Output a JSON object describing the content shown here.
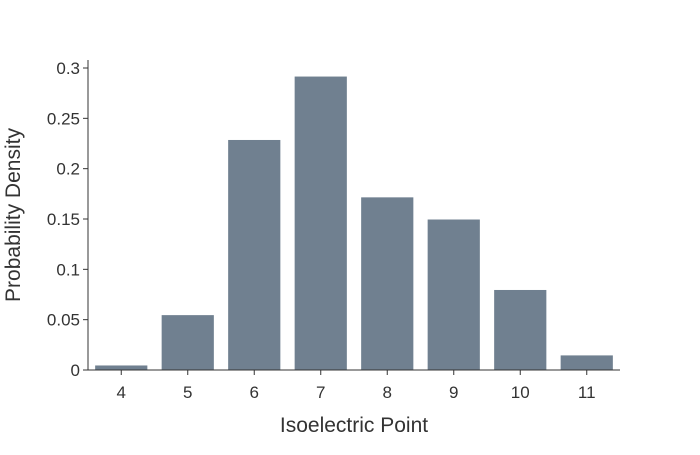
{
  "chart_data": {
    "type": "bar",
    "title": "",
    "xlabel": "Isoelectric Point",
    "ylabel": "Probability Density",
    "categories": [
      "4",
      "5",
      "6",
      "7",
      "8",
      "9",
      "10",
      "11"
    ],
    "values": [
      0.005,
      0.055,
      0.229,
      0.292,
      0.172,
      0.15,
      0.08,
      0.015
    ],
    "ylim": [
      0,
      0.3
    ],
    "yticks": [
      0,
      0.05,
      0.1,
      0.15,
      0.2,
      0.25,
      0.3
    ],
    "ytick_labels": [
      "0",
      "0.05",
      "0.1",
      "0.15",
      "0.2",
      "0.25",
      "0.3"
    ],
    "grid": false,
    "legend": "none",
    "bar_color": "#708090"
  }
}
